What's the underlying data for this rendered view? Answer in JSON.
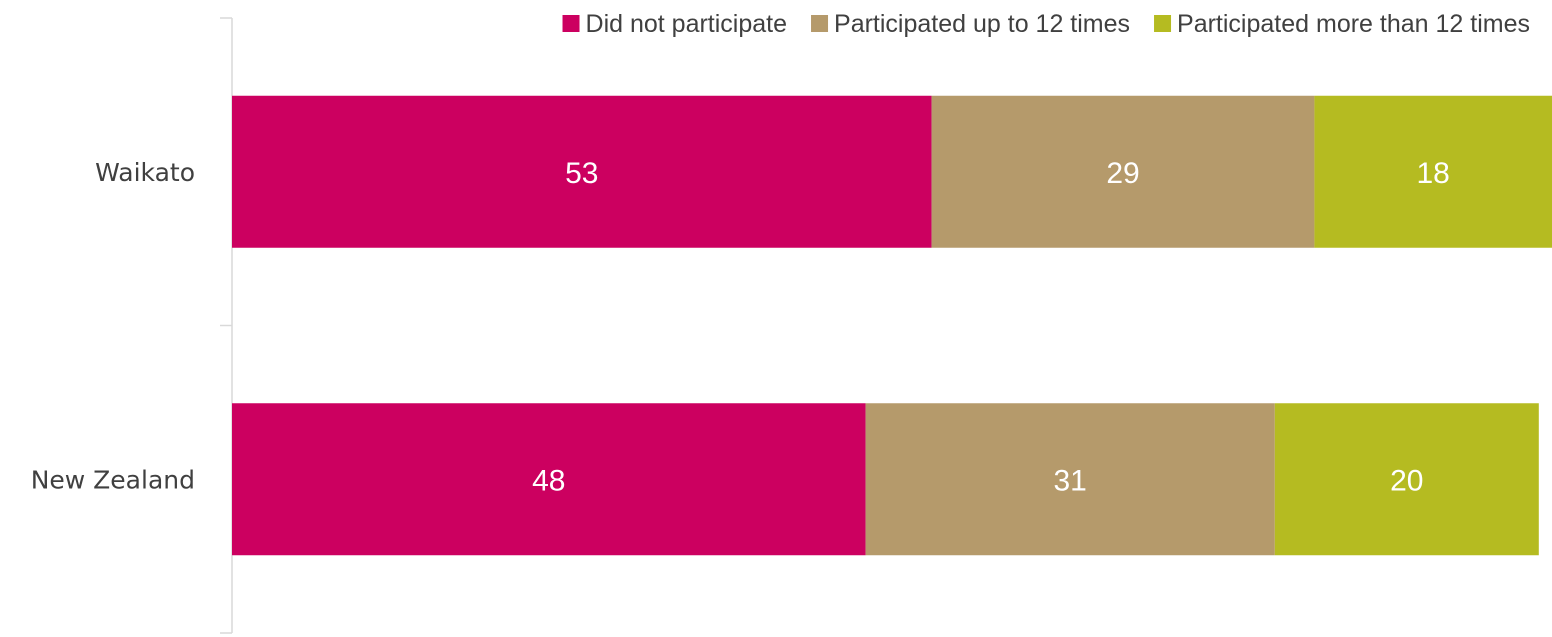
{
  "chart_data": {
    "type": "bar",
    "orientation": "horizontal",
    "stacked": true,
    "categories": [
      "Waikato",
      "New Zealand"
    ],
    "series": [
      {
        "name": "Did not participate",
        "color": "#cc0060",
        "values": [
          53,
          48
        ]
      },
      {
        "name": "Participated up to 12 times",
        "color": "#b59a6b",
        "values": [
          29,
          31
        ]
      },
      {
        "name": "Participated more than 12 times",
        "color": "#b5bb21",
        "values": [
          18,
          20
        ]
      }
    ],
    "data_labels": true,
    "legend_position": "top",
    "xlim": [
      0,
      100
    ],
    "grid": false
  }
}
